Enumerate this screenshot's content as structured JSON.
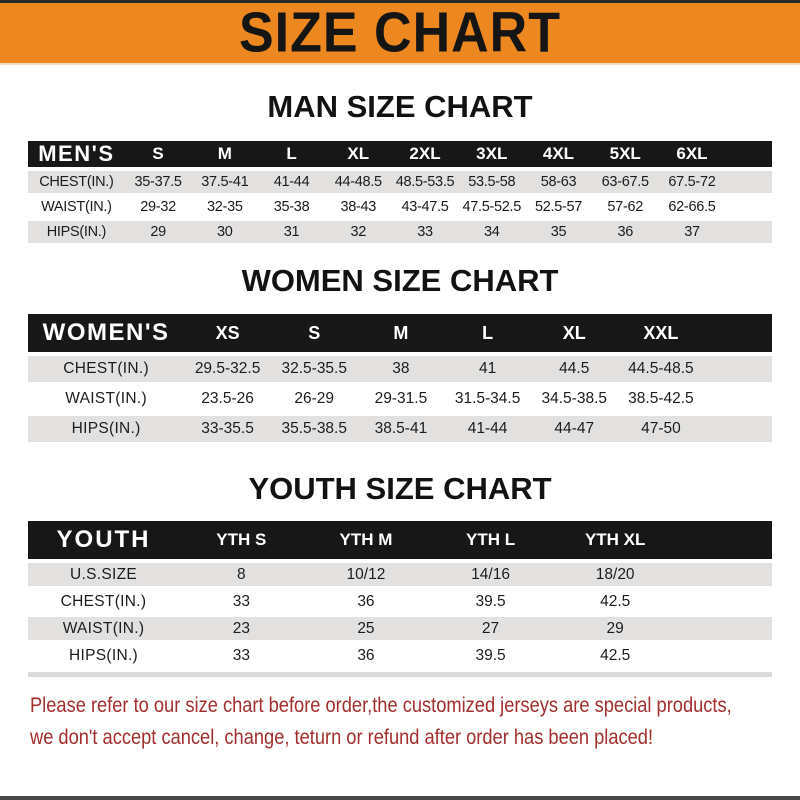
{
  "banner": {
    "title": "SIZE CHART"
  },
  "colors": {
    "banner_bg": "#ED871F",
    "banner_text": "#151515",
    "header_bar": "#171717",
    "row_stripe": "#E2E1E0",
    "footer_text": "#A32E2E"
  },
  "chart_data": [
    {
      "type": "table",
      "title": "MAN SIZE CHART",
      "header_label": "MEN'S",
      "columns": [
        "S",
        "M",
        "L",
        "XL",
        "2XL",
        "3XL",
        "4XL",
        "5XL",
        "6XL"
      ],
      "rows": [
        {
          "label": "CHEST(IN.)",
          "values": [
            "35-37.5",
            "37.5-41",
            "41-44",
            "44-48.5",
            "48.5-53.5",
            "53.5-58",
            "58-63",
            "63-67.5",
            "67.5-72"
          ]
        },
        {
          "label": "WAIST(IN.)",
          "values": [
            "29-32",
            "32-35",
            "35-38",
            "38-43",
            "43-47.5",
            "47.5-52.5",
            "52.5-57",
            "57-62",
            "62-66.5"
          ]
        },
        {
          "label": "HIPS(IN.)",
          "values": [
            "29",
            "30",
            "31",
            "32",
            "33",
            "34",
            "35",
            "36",
            "37"
          ]
        }
      ]
    },
    {
      "type": "table",
      "title": "WOMEN SIZE CHART",
      "header_label": "WOMEN'S",
      "columns": [
        "XS",
        "S",
        "M",
        "L",
        "XL",
        "XXL"
      ],
      "rows": [
        {
          "label": "CHEST(IN.)",
          "values": [
            "29.5-32.5",
            "32.5-35.5",
            "38",
            "41",
            "44.5",
            "44.5-48.5"
          ]
        },
        {
          "label": "WAIST(IN.)",
          "values": [
            "23.5-26",
            "26-29",
            "29-31.5",
            "31.5-34.5",
            "34.5-38.5",
            "38.5-42.5"
          ]
        },
        {
          "label": "HIPS(IN.)",
          "values": [
            "33-35.5",
            "35.5-38.5",
            "38.5-41",
            "41-44",
            "44-47",
            "47-50"
          ]
        }
      ]
    },
    {
      "type": "table",
      "title": "YOUTH SIZE CHART",
      "header_label": "YOUTH",
      "columns": [
        "YTH S",
        "YTH M",
        "YTH L",
        "YTH XL"
      ],
      "rows": [
        {
          "label": "U.S.SIZE",
          "values": [
            "8",
            "10/12",
            "14/16",
            "18/20"
          ]
        },
        {
          "label": "CHEST(IN.)",
          "values": [
            "33",
            "36",
            "39.5",
            "42.5"
          ]
        },
        {
          "label": "WAIST(IN.)",
          "values": [
            "23",
            "25",
            "27",
            "29"
          ]
        },
        {
          "label": "HIPS(IN.)",
          "values": [
            "33",
            "36",
            "39.5",
            "42.5"
          ]
        }
      ]
    }
  ],
  "footer": {
    "lines": [
      "Please refer to our size chart before order,the customized jerseys are special products,",
      "we don't accept cancel, change, teturn or refund after order has been placed!"
    ]
  }
}
